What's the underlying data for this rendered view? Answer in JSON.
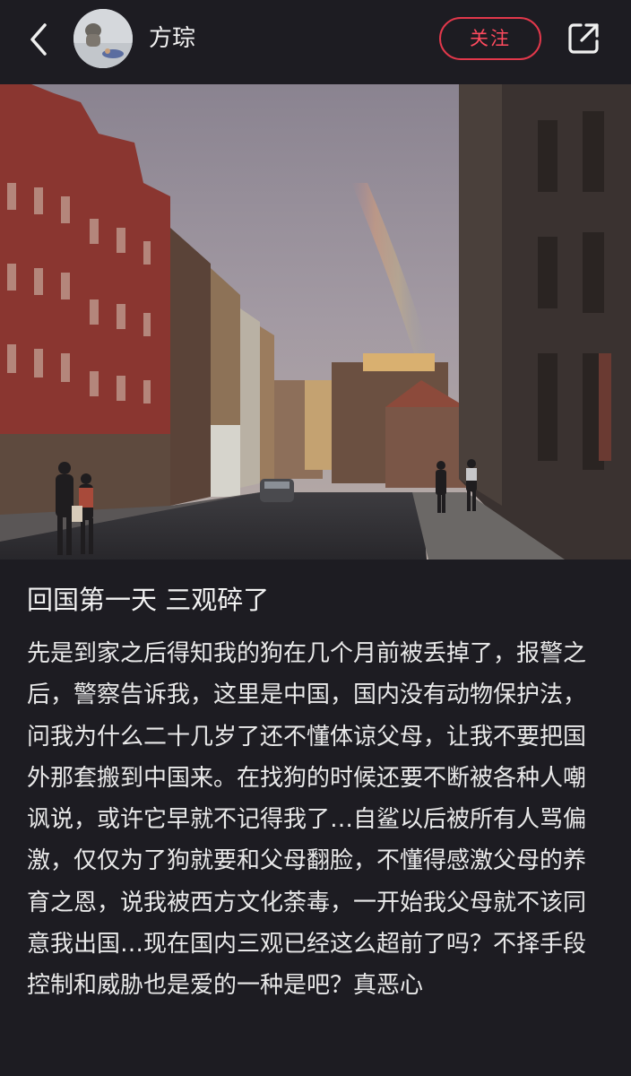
{
  "header": {
    "username": "方琮",
    "follow_label": "关注",
    "icons": {
      "back": "back-arrow-icon",
      "share": "share-icon"
    }
  },
  "post": {
    "title": "回国第一天 三观碎了",
    "body": "先是到家之后得知我的狗在几个月前被丢掉了，报警之后，警察告诉我，这里是中国，国内没有动物保护法，问我为什么二十几岁了还不懂体谅父母，让我不要把国外那套搬到中国来。在找狗的时候还要不断被各种人嘲讽说，或许它早就不记得我了…自鲨以后被所有人骂偏激，仅仅为了狗就要和父母翻脸，不懂得感激父母的养育之恩，说我被西方文化荼毒，一开始我父母就不该同意我出国…现在国内三观已经这么超前了吗？不择手段控制和威胁也是爱的一种是吧？真恶心"
  },
  "colors": {
    "background": "#1d1c22",
    "accent": "#e2384b",
    "text": "#efefef"
  }
}
